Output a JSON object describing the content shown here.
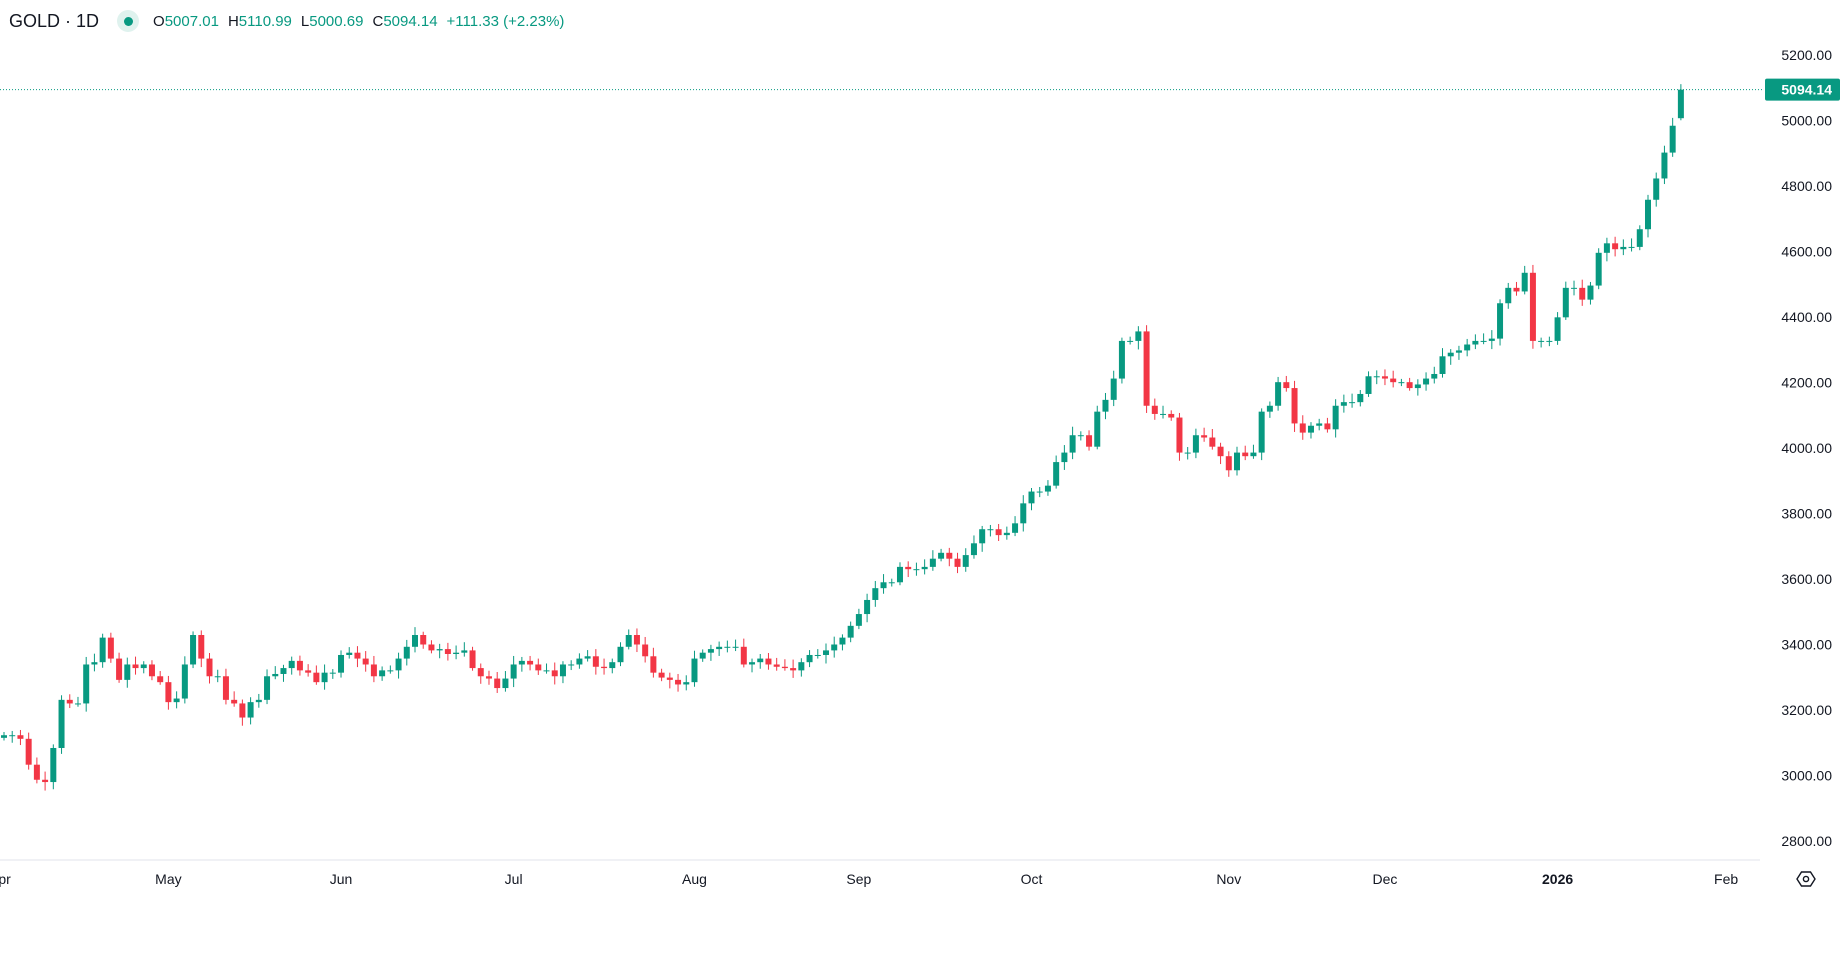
{
  "header": {
    "symbol": "GOLD · 1D",
    "open_label": "O",
    "open": "5007.01",
    "high_label": "H",
    "high": "5110.99",
    "low_label": "L",
    "low": "5000.69",
    "close_label": "C",
    "close": "5094.14",
    "change": "+111.33 (+2.23%)"
  },
  "colors": {
    "up": "#089981",
    "down": "#f23645",
    "text": "#131722"
  },
  "settings_icon": "settings-gear-icon",
  "chart_data": {
    "type": "candlestick",
    "title": "GOLD · 1D",
    "ylim": [
      2750,
      5250
    ],
    "y_ticks": [
      "5200.00",
      "5000.00",
      "4800.00",
      "4600.00",
      "4400.00",
      "4200.00",
      "4000.00",
      "3800.00",
      "3600.00",
      "3400.00",
      "3200.00",
      "3000.00",
      "2800.00"
    ],
    "x_ticks": [
      {
        "label": "Apr",
        "bold": false
      },
      {
        "label": "May",
        "bold": false
      },
      {
        "label": "Jun",
        "bold": false
      },
      {
        "label": "Jul",
        "bold": false
      },
      {
        "label": "Aug",
        "bold": false
      },
      {
        "label": "Sep",
        "bold": false
      },
      {
        "label": "Oct",
        "bold": false
      },
      {
        "label": "Nov",
        "bold": false
      },
      {
        "label": "Dec",
        "bold": false
      },
      {
        "label": "2026",
        "bold": true
      },
      {
        "label": "Feb",
        "bold": false
      }
    ],
    "last_price": "5094.14",
    "last_bar": {
      "open": 5007.01,
      "high": 5110.99,
      "low": 5000.69,
      "close": 5094.14
    },
    "closes": [
      3123,
      3123,
      3112,
      3033,
      2987,
      2980,
      3084,
      3231,
      3220,
      3220,
      3339,
      3346,
      3421,
      3357,
      3292,
      3339,
      3328,
      3339,
      3303,
      3285,
      3224,
      3235,
      3339,
      3429,
      3357,
      3303,
      3303,
      3231,
      3220,
      3177,
      3224,
      3231,
      3303,
      3310,
      3328,
      3350,
      3321,
      3314,
      3285,
      3314,
      3314,
      3368,
      3375,
      3357,
      3339,
      3303,
      3321,
      3321,
      3357,
      3393,
      3429,
      3400,
      3382,
      3386,
      3371,
      3375,
      3382,
      3328,
      3303,
      3296,
      3267,
      3296,
      3339,
      3350,
      3339,
      3321,
      3321,
      3303,
      3339,
      3339,
      3357,
      3364,
      3332,
      3328,
      3346,
      3393,
      3429,
      3400,
      3364,
      3314,
      3299,
      3292,
      3278,
      3285,
      3357,
      3375,
      3386,
      3393,
      3393,
      3393,
      3339,
      3346,
      3357,
      3339,
      3332,
      3328,
      3321,
      3346,
      3368,
      3368,
      3382,
      3400,
      3421,
      3457,
      3493,
      3536,
      3572,
      3590,
      3590,
      3637,
      3630,
      3630,
      3637,
      3662,
      3680,
      3662,
      3637,
      3673,
      3709,
      3752,
      3752,
      3734,
      3741,
      3770,
      3831,
      3867,
      3867,
      3885,
      3957,
      3986,
      4039,
      4039,
      4004,
      4111,
      4147,
      4212,
      4327,
      4327,
      4356,
      4129,
      4104,
      4104,
      4093,
      3986,
      3986,
      4039,
      4032,
      4004,
      3975,
      3932,
      3986,
      3975,
      3986,
      4111,
      4129,
      4201,
      4183,
      4075,
      4047,
      4068,
      4075,
      4057,
      4129,
      4140,
      4140,
      4165,
      4219,
      4219,
      4212,
      4201,
      4201,
      4183,
      4194,
      4212,
      4226,
      4280,
      4291,
      4298,
      4316,
      4327,
      4327,
      4334,
      4442,
      4489,
      4478,
      4535,
      4327,
      4327,
      4327,
      4399,
      4489,
      4489,
      4453,
      4496,
      4596,
      4625,
      4607,
      4614,
      4614,
      4668,
      4758,
      4823,
      4902,
      4984,
      5094.14
    ]
  }
}
